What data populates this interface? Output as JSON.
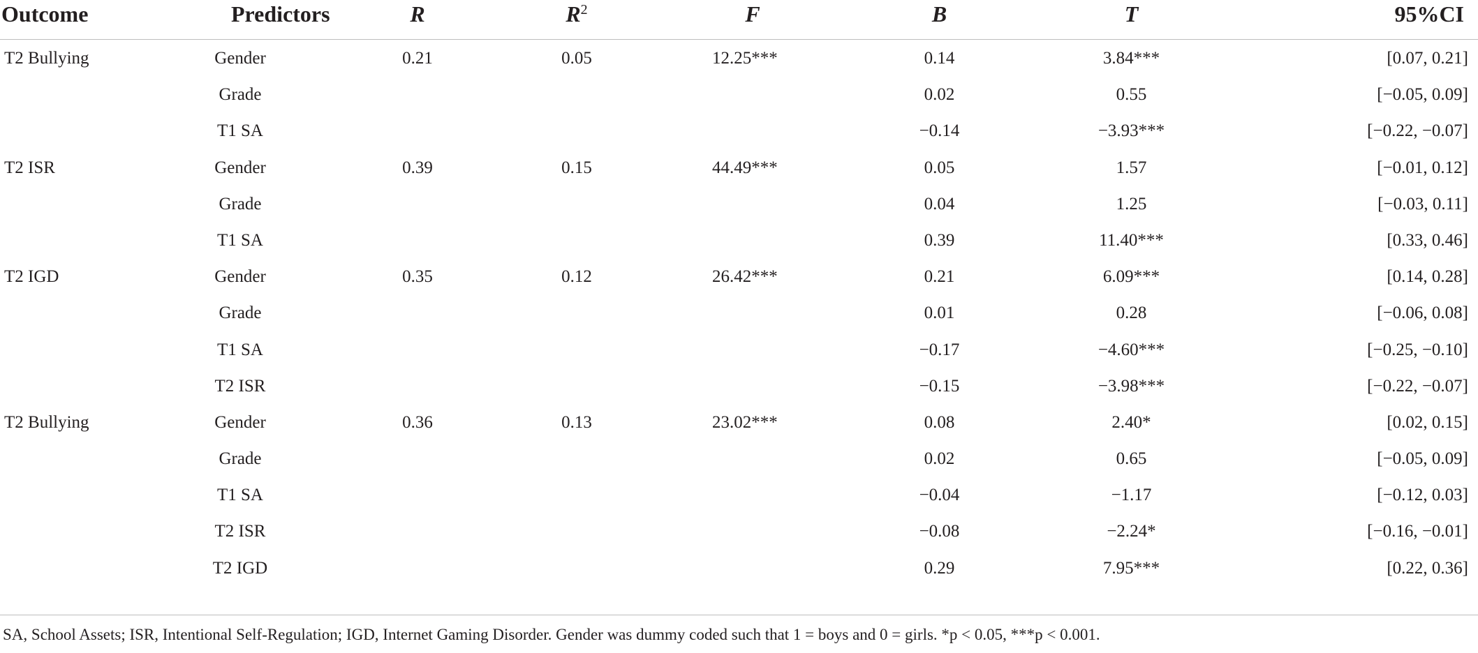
{
  "headers": {
    "outcome": "Outcome",
    "predictors": "Predictors",
    "r": "R",
    "r2_base": "R",
    "r2_sup": "2",
    "f": "F",
    "b": "B",
    "t": "T",
    "ci": "95%CI"
  },
  "rows": [
    {
      "outcome": "T2 Bullying",
      "predictor": "Gender",
      "r": "0.21",
      "r2": "0.05",
      "f": "12.25***",
      "b": "0.14",
      "t": "3.84***",
      "ci": "[0.07, 0.21]"
    },
    {
      "outcome": "",
      "predictor": "Grade",
      "r": "",
      "r2": "",
      "f": "",
      "b": "0.02",
      "t": "0.55",
      "ci": "[−0.05, 0.09]"
    },
    {
      "outcome": "",
      "predictor": "T1 SA",
      "r": "",
      "r2": "",
      "f": "",
      "b": "−0.14",
      "t": "−3.93***",
      "ci": "[−0.22, −0.07]"
    },
    {
      "outcome": "T2 ISR",
      "predictor": "Gender",
      "r": "0.39",
      "r2": "0.15",
      "f": "44.49***",
      "b": "0.05",
      "t": "1.57",
      "ci": "[−0.01, 0.12]"
    },
    {
      "outcome": "",
      "predictor": "Grade",
      "r": "",
      "r2": "",
      "f": "",
      "b": "0.04",
      "t": "1.25",
      "ci": "[−0.03, 0.11]"
    },
    {
      "outcome": "",
      "predictor": "T1 SA",
      "r": "",
      "r2": "",
      "f": "",
      "b": "0.39",
      "t": "11.40***",
      "ci": "[0.33, 0.46]"
    },
    {
      "outcome": "T2 IGD",
      "predictor": "Gender",
      "r": "0.35",
      "r2": "0.12",
      "f": "26.42***",
      "b": "0.21",
      "t": "6.09***",
      "ci": "[0.14, 0.28]"
    },
    {
      "outcome": "",
      "predictor": "Grade",
      "r": "",
      "r2": "",
      "f": "",
      "b": "0.01",
      "t": "0.28",
      "ci": "[−0.06, 0.08]"
    },
    {
      "outcome": "",
      "predictor": "T1 SA",
      "r": "",
      "r2": "",
      "f": "",
      "b": "−0.17",
      "t": "−4.60***",
      "ci": "[−0.25, −0.10]"
    },
    {
      "outcome": "",
      "predictor": "T2 ISR",
      "r": "",
      "r2": "",
      "f": "",
      "b": "−0.15",
      "t": "−3.98***",
      "ci": "[−0.22, −0.07]"
    },
    {
      "outcome": "T2 Bullying",
      "predictor": "Gender",
      "r": "0.36",
      "r2": "0.13",
      "f": "23.02***",
      "b": "0.08",
      "t": "2.40*",
      "ci": "[0.02, 0.15]"
    },
    {
      "outcome": "",
      "predictor": "Grade",
      "r": "",
      "r2": "",
      "f": "",
      "b": "0.02",
      "t": "0.65",
      "ci": "[−0.05, 0.09]"
    },
    {
      "outcome": "",
      "predictor": "T1 SA",
      "r": "",
      "r2": "",
      "f": "",
      "b": "−0.04",
      "t": "−1.17",
      "ci": "[−0.12, 0.03]"
    },
    {
      "outcome": "",
      "predictor": "T2 ISR",
      "r": "",
      "r2": "",
      "f": "",
      "b": "−0.08",
      "t": "−2.24*",
      "ci": "[−0.16, −0.01]"
    },
    {
      "outcome": "",
      "predictor": "T2 IGD",
      "r": "",
      "r2": "",
      "f": "",
      "b": "0.29",
      "t": "7.95***",
      "ci": "[0.22, 0.36]"
    }
  ],
  "note": "SA, School Assets; ISR, Intentional Self-Regulation; IGD, Internet Gaming Disorder. Gender was dummy coded such that 1 = boys and 0 = girls. *p < 0.05, ***p < 0.001."
}
